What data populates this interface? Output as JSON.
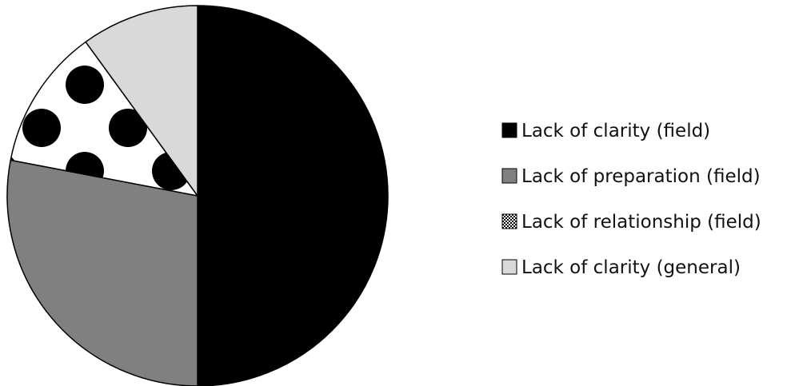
{
  "chart_data": {
    "type": "pie",
    "title": "",
    "slices": [
      {
        "label": "Lack of clarity (field)",
        "value": 50,
        "fill": "#000000",
        "pattern": "solid"
      },
      {
        "label": "Lack of preparation (field)",
        "value": 28,
        "fill": "#808080",
        "pattern": "solid"
      },
      {
        "label": "Lack of relationship (field)",
        "value": 12,
        "fill": "#ffffff",
        "pattern": "dots"
      },
      {
        "label": "Lack of clarity (general)",
        "value": 10,
        "fill": "#d9d9d9",
        "pattern": "solid"
      }
    ],
    "start_angle": "12 o'clock",
    "direction": "clockwise",
    "legend_position": "right",
    "slice_outline": "#000000"
  }
}
